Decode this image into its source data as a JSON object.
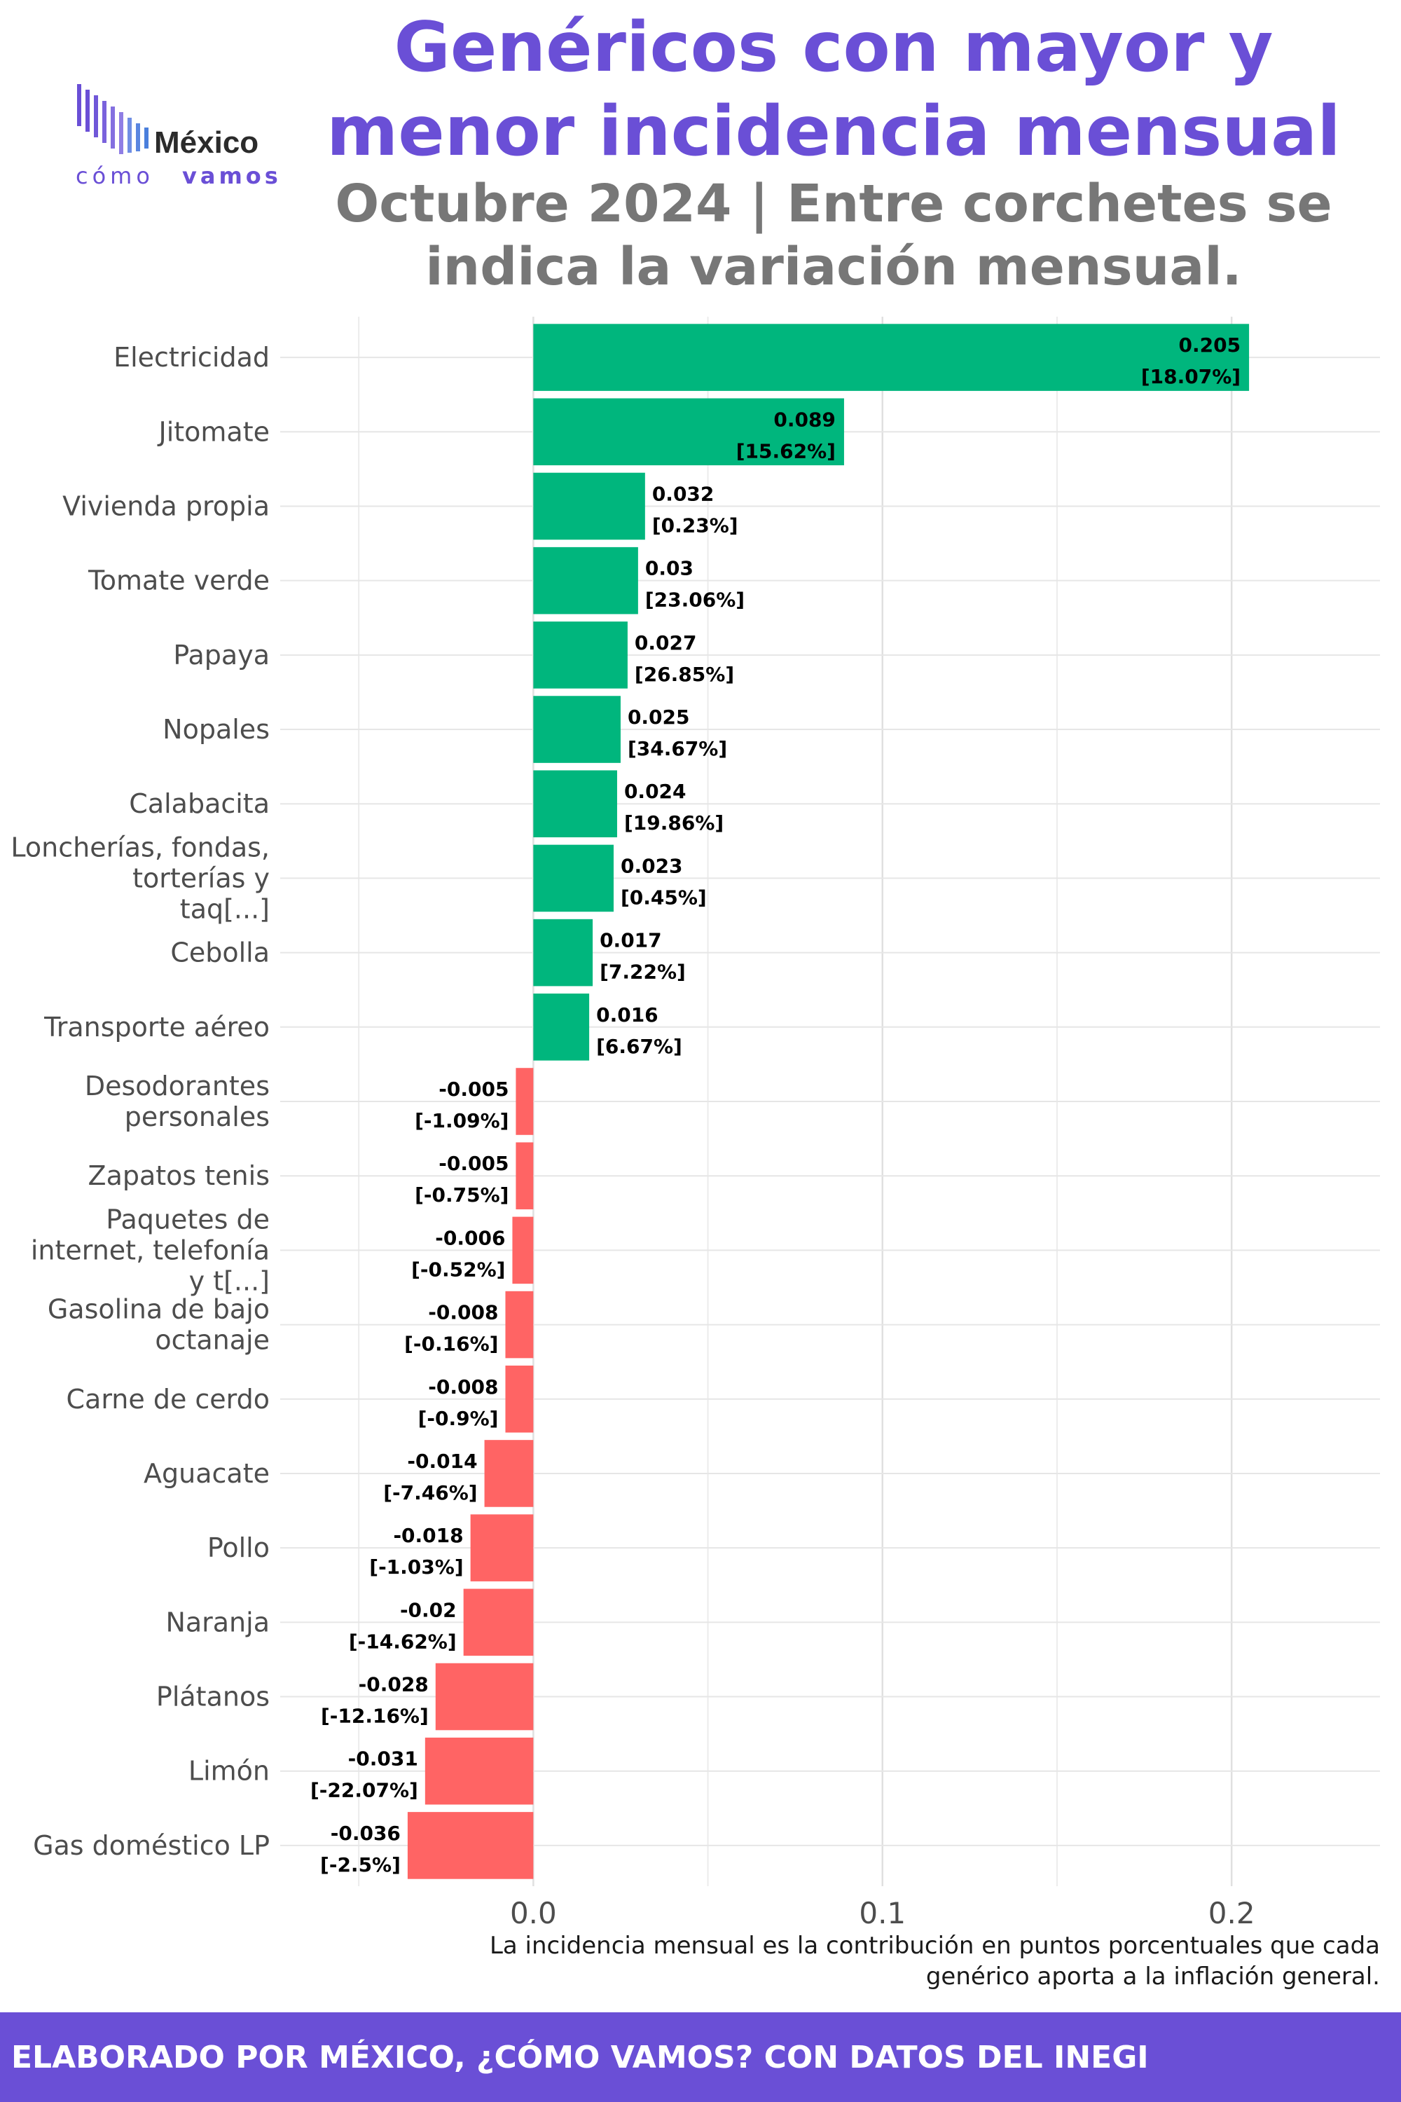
{
  "header": {
    "title": "Genéricos con mayor y menor incidencia mensual",
    "subtitle": "Octubre 2024 | Entre corchetes se indica la variación mensual."
  },
  "logo": {
    "line1": "México",
    "line2a": "cómo",
    "line2b": "vamos"
  },
  "colors": {
    "positive": "#00b67d",
    "negative": "#ff6464",
    "accent": "#6a4fd6"
  },
  "chart_data": {
    "type": "bar",
    "orientation": "horizontal",
    "categories": [
      "Electricidad",
      "Jitomate",
      "Vivienda propia",
      "Tomate verde",
      "Papaya",
      "Nopales",
      "Calabacita",
      "Loncherías, fondas, torterías y taq[...]",
      "Cebolla",
      "Transporte aéreo",
      "Desodorantes personales",
      "Zapatos tenis",
      "Paquetes de internet, telefonía y t[...]",
      "Gasolina de bajo octanaje",
      "Carne de cerdo",
      "Aguacate",
      "Pollo",
      "Naranja",
      "Plátanos",
      "Limón",
      "Gas doméstico LP"
    ],
    "values": [
      0.205,
      0.089,
      0.032,
      0.03,
      0.027,
      0.025,
      0.024,
      0.023,
      0.017,
      0.016,
      -0.005,
      -0.005,
      -0.006,
      -0.008,
      -0.008,
      -0.014,
      -0.018,
      -0.02,
      -0.028,
      -0.031,
      -0.036
    ],
    "value_labels": [
      "0.205",
      "0.089",
      "0.032",
      "0.03",
      "0.027",
      "0.025",
      "0.024",
      "0.023",
      "0.017",
      "0.016",
      "-0.005",
      "-0.005",
      "-0.006",
      "-0.008",
      "-0.008",
      "-0.014",
      "-0.018",
      "-0.02",
      "-0.028",
      "-0.031",
      "-0.036"
    ],
    "variation_labels": [
      "[18.07%]",
      "[15.62%]",
      "[0.23%]",
      "[23.06%]",
      "[26.85%]",
      "[34.67%]",
      "[19.86%]",
      "[0.45%]",
      "[7.22%]",
      "[6.67%]",
      "[-1.09%]",
      "[-0.75%]",
      "[-0.52%]",
      "[-0.16%]",
      "[-0.9%]",
      "[-7.46%]",
      "[-1.03%]",
      "[-14.62%]",
      "[-12.16%]",
      "[-22.07%]",
      "[-2.5%]"
    ],
    "xlim": [
      -0.0725,
      0.2425
    ],
    "xticks": [
      "0.0",
      "0.1",
      "0.2"
    ],
    "grid": true,
    "xlabel": "",
    "ylabel": ""
  },
  "footnote": "La incidencia mensual es la contribución en puntos porcentuales que cada genérico aporta a la inflación general.",
  "footer": "ELABORADO POR MÉXICO, ¿CÓMO VAMOS? CON DATOS DEL INEGI"
}
